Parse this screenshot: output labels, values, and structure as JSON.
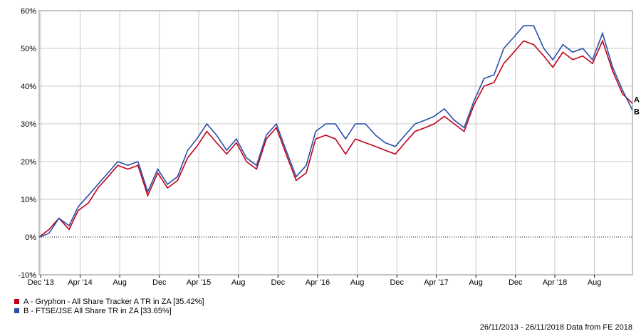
{
  "chart_data": {
    "type": "line",
    "x": [
      "2013-11-26",
      "2013-12-26",
      "2014-01-26",
      "2014-02-26",
      "2014-03-26",
      "2014-04-26",
      "2014-05-26",
      "2014-06-26",
      "2014-07-26",
      "2014-08-26",
      "2014-09-26",
      "2014-10-26",
      "2014-11-26",
      "2014-12-26",
      "2015-01-26",
      "2015-02-26",
      "2015-03-26",
      "2015-04-26",
      "2015-05-26",
      "2015-06-26",
      "2015-07-26",
      "2015-08-26",
      "2015-09-26",
      "2015-10-26",
      "2015-11-26",
      "2015-12-26",
      "2016-01-26",
      "2016-02-26",
      "2016-03-26",
      "2016-04-26",
      "2016-05-26",
      "2016-06-26",
      "2016-07-26",
      "2016-08-26",
      "2016-09-26",
      "2016-10-26",
      "2016-11-26",
      "2016-12-26",
      "2017-01-26",
      "2017-02-26",
      "2017-03-26",
      "2017-04-26",
      "2017-05-26",
      "2017-06-26",
      "2017-07-26",
      "2017-08-26",
      "2017-09-26",
      "2017-10-26",
      "2017-11-26",
      "2017-12-26",
      "2018-01-26",
      "2018-02-26",
      "2018-03-26",
      "2018-04-26",
      "2018-05-26",
      "2018-06-26",
      "2018-07-26",
      "2018-08-26",
      "2018-09-26",
      "2018-10-26",
      "2018-11-26"
    ],
    "series": [
      {
        "name": "A - Gryphon - All Share Tracker A TR in ZA [35.42%]",
        "end_label": "A",
        "color": "#c0001a",
        "values": [
          0,
          2,
          5,
          2,
          7,
          9,
          13,
          16,
          19,
          18,
          19,
          11,
          17,
          13,
          15,
          21,
          24,
          28,
          25,
          22,
          25,
          20,
          18,
          26,
          29,
          22,
          15,
          17,
          26,
          27,
          26,
          22,
          26,
          25,
          24,
          23,
          22,
          25,
          28,
          29,
          30,
          32,
          30,
          28,
          35,
          40,
          41,
          46,
          49,
          52,
          51,
          48,
          45,
          49,
          47,
          48,
          46,
          52,
          44,
          38,
          35.42
        ]
      },
      {
        "name": "B - FTSE/JSE All Share TR in ZA [33.65%]",
        "end_label": "B",
        "color": "#2a4fa8",
        "values": [
          0,
          1,
          5,
          3,
          8,
          11,
          14,
          17,
          20,
          19,
          20,
          12,
          18,
          14,
          16,
          23,
          26,
          30,
          27,
          23,
          26,
          21,
          19,
          27,
          30,
          23,
          16,
          19,
          28,
          30,
          30,
          26,
          30,
          30,
          27,
          25,
          24,
          27,
          30,
          31,
          32,
          34,
          31,
          29,
          36,
          42,
          43,
          50,
          53,
          56,
          56,
          50,
          47,
          51,
          49,
          50,
          47,
          54,
          45,
          39,
          33.65
        ]
      }
    ],
    "xlim": [
      "2013-11-26",
      "2018-11-26"
    ],
    "xticks": [
      {
        "value": "2013-12-01",
        "label": "Dec '13"
      },
      {
        "value": "2014-04-01",
        "label": "Apr '14"
      },
      {
        "value": "2014-08-01",
        "label": "Aug"
      },
      {
        "value": "2014-12-01",
        "label": "Dec"
      },
      {
        "value": "2015-04-01",
        "label": "Apr '15"
      },
      {
        "value": "2015-08-01",
        "label": "Aug"
      },
      {
        "value": "2015-12-01",
        "label": "Dec"
      },
      {
        "value": "2016-04-01",
        "label": "Apr '16"
      },
      {
        "value": "2016-08-01",
        "label": "Aug"
      },
      {
        "value": "2016-12-01",
        "label": "Dec"
      },
      {
        "value": "2017-04-01",
        "label": "Apr '17"
      },
      {
        "value": "2017-08-01",
        "label": "Aug"
      },
      {
        "value": "2017-12-01",
        "label": "Dec"
      },
      {
        "value": "2018-04-01",
        "label": "Apr '18"
      },
      {
        "value": "2018-08-01",
        "label": "Aug"
      }
    ],
    "ylim": [
      -10,
      60
    ],
    "yticks": [
      {
        "value": -10,
        "label": "-10%"
      },
      {
        "value": 0,
        "label": "0%"
      },
      {
        "value": 10,
        "label": "10%"
      },
      {
        "value": 20,
        "label": "20%"
      },
      {
        "value": 30,
        "label": "30%"
      },
      {
        "value": 40,
        "label": "40%"
      },
      {
        "value": 50,
        "label": "50%"
      },
      {
        "value": 60,
        "label": "60%"
      }
    ],
    "grid": true,
    "footer": "26/11/2013 - 26/11/2018 Data from FE 2018"
  }
}
